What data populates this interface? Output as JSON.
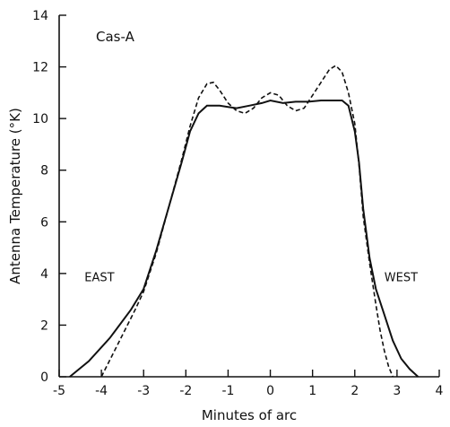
{
  "chart_data": {
    "type": "line",
    "annotation_title": "Cas-A",
    "xlabel": "Minutes of arc",
    "ylabel": "Antenna  Temperature (°K)",
    "xlim": [
      -5,
      4
    ],
    "ylim": [
      0,
      14
    ],
    "x_ticks": [
      -5,
      -4,
      -3,
      -2,
      -1,
      0,
      1,
      2,
      3,
      4
    ],
    "y_ticks": [
      0,
      2,
      4,
      6,
      8,
      10,
      12,
      14
    ],
    "annotations": [
      {
        "text": "EAST",
        "x": -4.4,
        "y": 3.7
      },
      {
        "text": "WEST",
        "x": 2.7,
        "y": 3.7
      }
    ],
    "series": [
      {
        "style": "solid",
        "x": [
          -4.75,
          -4.3,
          -3.8,
          -3.3,
          -3.0,
          -2.7,
          -2.4,
          -2.1,
          -1.9,
          -1.7,
          -1.5,
          -1.2,
          -1.0,
          -0.8,
          -0.5,
          -0.2,
          0.0,
          0.3,
          0.6,
          0.9,
          1.2,
          1.5,
          1.7,
          1.85,
          2.0,
          2.1,
          2.2,
          2.35,
          2.5,
          2.7,
          2.9,
          3.1,
          3.3,
          3.5
        ],
        "y": [
          0.0,
          0.6,
          1.5,
          2.6,
          3.4,
          4.9,
          6.6,
          8.3,
          9.5,
          10.2,
          10.5,
          10.5,
          10.45,
          10.4,
          10.5,
          10.6,
          10.7,
          10.6,
          10.65,
          10.65,
          10.7,
          10.7,
          10.7,
          10.5,
          9.5,
          8.3,
          6.5,
          4.6,
          3.4,
          2.4,
          1.4,
          0.7,
          0.3,
          0.0
        ]
      },
      {
        "style": "dashed",
        "x": [
          -4.0,
          -3.6,
          -3.2,
          -3.0,
          -2.7,
          -2.4,
          -2.1,
          -1.9,
          -1.7,
          -1.5,
          -1.35,
          -1.2,
          -1.0,
          -0.8,
          -0.6,
          -0.4,
          -0.2,
          0.0,
          0.2,
          0.4,
          0.6,
          0.8,
          1.0,
          1.2,
          1.4,
          1.55,
          1.7,
          1.85,
          2.0,
          2.1,
          2.2,
          2.35,
          2.5,
          2.6,
          2.7,
          2.8,
          2.9
        ],
        "y": [
          0.0,
          1.3,
          2.6,
          3.3,
          4.8,
          6.6,
          8.4,
          9.7,
          10.8,
          11.35,
          11.4,
          11.1,
          10.6,
          10.3,
          10.2,
          10.4,
          10.8,
          11.0,
          10.9,
          10.5,
          10.3,
          10.4,
          10.9,
          11.4,
          11.9,
          12.05,
          11.8,
          11.0,
          9.8,
          8.2,
          6.2,
          4.4,
          2.8,
          1.8,
          1.0,
          0.4,
          0.0
        ]
      }
    ]
  }
}
